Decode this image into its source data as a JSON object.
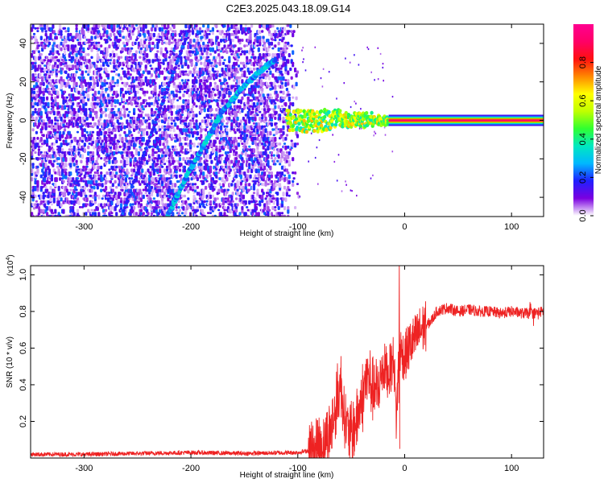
{
  "figure": {
    "title": "C2E3.2025.043.18.09.G14"
  },
  "chart_data": [
    {
      "type": "heatmap",
      "title": "C2E3.2025.043.18.09.G14",
      "xlabel": "Height of straight line (km)",
      "ylabel": "Frequency (Hz)",
      "xlim": [
        -350,
        130
      ],
      "ylim": [
        -50,
        50
      ],
      "x_ticks": [
        -300,
        -200,
        -100,
        0,
        100
      ],
      "y_ticks": [
        -40,
        -20,
        0,
        20,
        40
      ],
      "colorscale": "rainbow (violet-blue-cyan-green-yellow-red-magenta)",
      "colorbar": {
        "label": "Normalized spectral amplitude",
        "range": [
          0,
          1
        ],
        "ticks": [
          0.0,
          0.2,
          0.4,
          0.6,
          0.8
        ],
        "colors": [
          "#ffffff",
          "#7b00e0",
          "#2020ff",
          "#00b8ff",
          "#00e8c0",
          "#30ff30",
          "#c0ff00",
          "#ffff00",
          "#ff8800",
          "#ff1010",
          "#ff0066",
          "#ff0090"
        ]
      },
      "features": [
        {
          "name": "diagonal trace",
          "points": [
            [
              -222,
              -50
            ],
            [
              -205,
              -30
            ],
            [
              -185,
              -10
            ],
            [
              -170,
              5
            ],
            [
              -150,
              18
            ],
            [
              -130,
              28
            ],
            [
              -120,
              32
            ]
          ]
        },
        {
          "name": "faint diagonal",
          "points": [
            [
              -265,
              -50
            ],
            [
              -200,
              50
            ]
          ]
        },
        {
          "name": "zero-frequency band",
          "x_range": [
            -110,
            130
          ],
          "frequency": 0
        }
      ]
    },
    {
      "type": "line",
      "xlabel": "Height of straight line (km)",
      "ylabel": "SNR (10 * v/v)",
      "y_multiplier": "(x10",
      "y_multiplier_exp": "4",
      "multiplier_close": ")",
      "xlim": [
        -350,
        130
      ],
      "ylim": [
        0,
        1.05
      ],
      "x_ticks": [
        -300,
        -200,
        -100,
        0,
        100
      ],
      "y_ticks": [
        0.2,
        0.4,
        0.6,
        0.8,
        1.0
      ],
      "series": [
        {
          "color": "#ee2222",
          "x": [
            -350,
            -300,
            -250,
            -200,
            -150,
            -100,
            -90,
            -80,
            -75,
            -70,
            -65,
            -60,
            -55,
            -50,
            -45,
            -40,
            -35,
            -30,
            -25,
            -20,
            -15,
            -10,
            -8,
            -5,
            0,
            5,
            10,
            15,
            20,
            25,
            30,
            40,
            50,
            60,
            70,
            80,
            90,
            100,
            110,
            120,
            130
          ],
          "y": [
            0.02,
            0.02,
            0.025,
            0.03,
            0.025,
            0.03,
            0.04,
            0.06,
            0.09,
            0.14,
            0.25,
            0.42,
            0.18,
            0.12,
            0.2,
            0.32,
            0.45,
            0.38,
            0.35,
            0.5,
            0.46,
            0.55,
            0.2,
            0.6,
            0.55,
            0.62,
            0.65,
            0.7,
            0.72,
            0.75,
            0.8,
            0.82,
            0.8,
            0.81,
            0.8,
            0.8,
            0.79,
            0.8,
            0.79,
            0.79,
            0.8
          ]
        }
      ]
    }
  ]
}
